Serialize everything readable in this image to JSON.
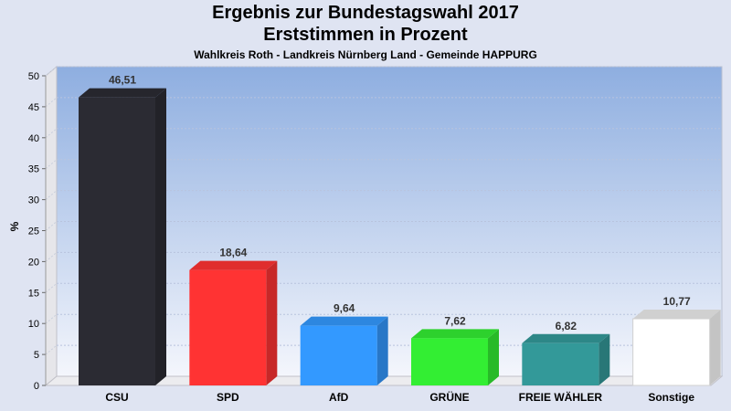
{
  "header": {
    "title": "Ergebnis zur Bundestagswahl 2017",
    "subtitle": "Erststimmen in Prozent",
    "caption": "Wahlkreis Roth - Landkreis Nürnberg Land - Gemeinde HAPPURG"
  },
  "chart_data": {
    "type": "bar",
    "title": "Ergebnis zur Bundestagswahl 2017",
    "subtitle": "Erststimmen in Prozent",
    "xlabel": "",
    "ylabel": "%",
    "ylim": [
      0,
      50
    ],
    "yticks": [
      0,
      5,
      10,
      15,
      20,
      25,
      30,
      35,
      40,
      45,
      50
    ],
    "grid": true,
    "categories": [
      "CSU",
      "SPD",
      "AfD",
      "GRÜNE",
      "FREIE WÄHLER",
      "Sonstige"
    ],
    "values": [
      46.51,
      18.64,
      9.64,
      7.62,
      6.82,
      10.77
    ],
    "data_labels": [
      "46,51",
      "18,64",
      "9,64",
      "7,62",
      "6,82",
      "10,77"
    ],
    "colors": [
      "#2b2b33",
      "#ff3333",
      "#3399ff",
      "#33ee33",
      "#339999",
      "#ffffff"
    ]
  }
}
